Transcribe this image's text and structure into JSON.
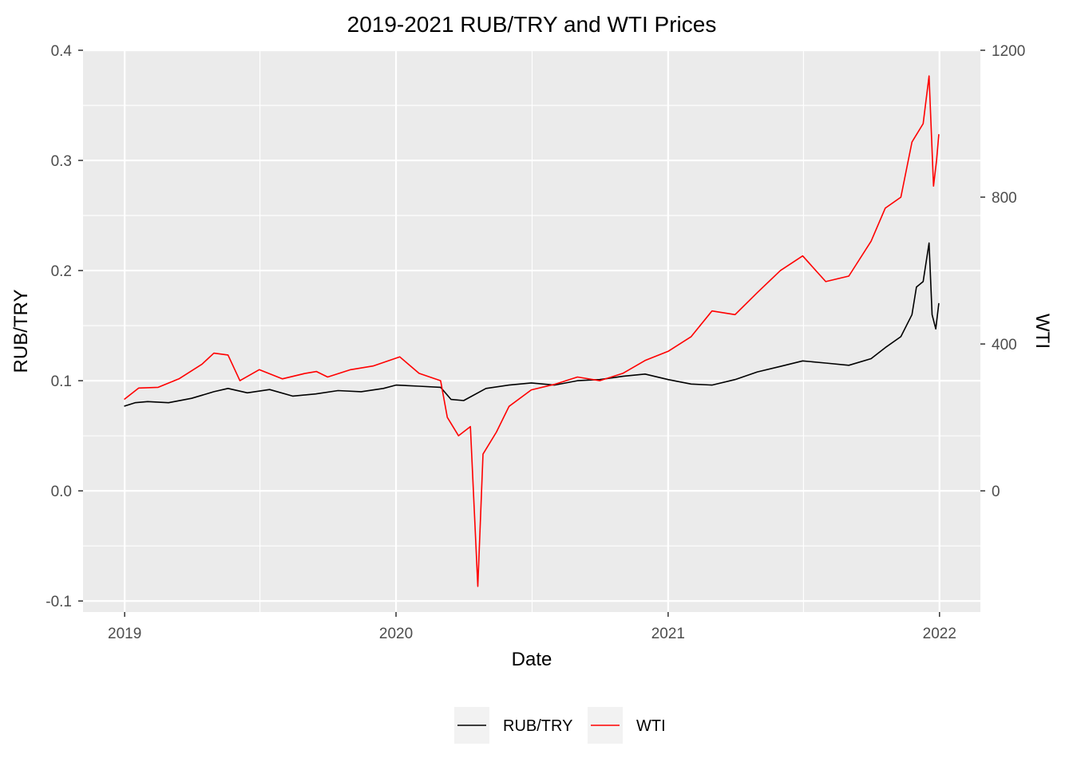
{
  "chart_data": {
    "type": "line",
    "title": "2019-2021 RUB/TRY and WTI Prices",
    "xlabel": "Date",
    "ylabel": "RUB/TRY",
    "y2label": "WTI",
    "xlim": [
      "2018-11-06",
      "2022-02-25"
    ],
    "ylim": [
      -0.11,
      0.4
    ],
    "y2lim": [
      -330,
      1200
    ],
    "x_ticks": [
      "2019",
      "2020",
      "2021",
      "2022"
    ],
    "y_ticks": [
      "-0.1",
      "0.0",
      "0.1",
      "0.2",
      "0.3",
      "0.4"
    ],
    "y2_ticks": [
      "0",
      "400",
      "800",
      "1200"
    ],
    "grid": true,
    "legend_position": "bottom",
    "colors": {
      "rub_try": "#000000",
      "wti": "#ff0000",
      "panel": "#ebebeb",
      "grid": "#ffffff"
    },
    "series": [
      {
        "name": "RUB/TRY",
        "axis": "left",
        "points": [
          [
            "2019-01-01",
            0.077
          ],
          [
            "2019-01-15",
            0.08
          ],
          [
            "2019-02-01",
            0.081
          ],
          [
            "2019-03-01",
            0.08
          ],
          [
            "2019-04-01",
            0.084
          ],
          [
            "2019-05-01",
            0.09
          ],
          [
            "2019-05-20",
            0.093
          ],
          [
            "2019-06-15",
            0.089
          ],
          [
            "2019-07-15",
            0.092
          ],
          [
            "2019-08-15",
            0.086
          ],
          [
            "2019-09-15",
            0.088
          ],
          [
            "2019-10-15",
            0.091
          ],
          [
            "2019-11-15",
            0.09
          ],
          [
            "2019-12-15",
            0.093
          ],
          [
            "2020-01-01",
            0.096
          ],
          [
            "2020-02-01",
            0.095
          ],
          [
            "2020-03-01",
            0.094
          ],
          [
            "2020-03-15",
            0.083
          ],
          [
            "2020-04-01",
            0.082
          ],
          [
            "2020-05-01",
            0.093
          ],
          [
            "2020-06-01",
            0.096
          ],
          [
            "2020-07-01",
            0.098
          ],
          [
            "2020-08-01",
            0.096
          ],
          [
            "2020-09-01",
            0.1
          ],
          [
            "2020-10-01",
            0.101
          ],
          [
            "2020-11-01",
            0.104
          ],
          [
            "2020-12-01",
            0.106
          ],
          [
            "2021-01-01",
            0.101
          ],
          [
            "2021-02-01",
            0.097
          ],
          [
            "2021-03-01",
            0.096
          ],
          [
            "2021-04-01",
            0.101
          ],
          [
            "2021-05-01",
            0.108
          ],
          [
            "2021-06-01",
            0.113
          ],
          [
            "2021-07-01",
            0.118
          ],
          [
            "2021-08-01",
            0.116
          ],
          [
            "2021-09-01",
            0.114
          ],
          [
            "2021-10-01",
            0.12
          ],
          [
            "2021-10-20",
            0.13
          ],
          [
            "2021-11-10",
            0.14
          ],
          [
            "2021-11-25",
            0.16
          ],
          [
            "2021-12-01",
            0.185
          ],
          [
            "2021-12-10",
            0.19
          ],
          [
            "2021-12-18",
            0.225
          ],
          [
            "2021-12-22",
            0.16
          ],
          [
            "2021-12-27",
            0.147
          ],
          [
            "2021-12-31",
            0.17
          ]
        ]
      },
      {
        "name": "WTI",
        "axis": "right",
        "points": [
          [
            "2019-01-01",
            250
          ],
          [
            "2019-01-20",
            280
          ],
          [
            "2019-02-15",
            282
          ],
          [
            "2019-03-15",
            305
          ],
          [
            "2019-04-15",
            345
          ],
          [
            "2019-05-01",
            375
          ],
          [
            "2019-05-20",
            370
          ],
          [
            "2019-06-05",
            300
          ],
          [
            "2019-07-01",
            330
          ],
          [
            "2019-08-01",
            305
          ],
          [
            "2019-09-01",
            320
          ],
          [
            "2019-09-16",
            325
          ],
          [
            "2019-10-01",
            310
          ],
          [
            "2019-11-01",
            330
          ],
          [
            "2019-12-01",
            340
          ],
          [
            "2020-01-06",
            365
          ],
          [
            "2020-02-01",
            320
          ],
          [
            "2020-03-01",
            300
          ],
          [
            "2020-03-10",
            200
          ],
          [
            "2020-03-25",
            150
          ],
          [
            "2020-04-10",
            175
          ],
          [
            "2020-04-20",
            -260
          ],
          [
            "2020-04-27",
            100
          ],
          [
            "2020-05-15",
            160
          ],
          [
            "2020-06-01",
            230
          ],
          [
            "2020-07-01",
            275
          ],
          [
            "2020-08-01",
            290
          ],
          [
            "2020-09-01",
            310
          ],
          [
            "2020-10-01",
            300
          ],
          [
            "2020-11-01",
            320
          ],
          [
            "2020-12-01",
            355
          ],
          [
            "2021-01-01",
            380
          ],
          [
            "2021-02-01",
            420
          ],
          [
            "2021-03-01",
            490
          ],
          [
            "2021-04-01",
            480
          ],
          [
            "2021-05-01",
            540
          ],
          [
            "2021-06-01",
            600
          ],
          [
            "2021-07-01",
            640
          ],
          [
            "2021-08-01",
            570
          ],
          [
            "2021-09-01",
            585
          ],
          [
            "2021-10-01",
            680
          ],
          [
            "2021-10-20",
            770
          ],
          [
            "2021-11-10",
            800
          ],
          [
            "2021-11-25",
            950
          ],
          [
            "2021-12-10",
            1000
          ],
          [
            "2021-12-18",
            1130
          ],
          [
            "2021-12-24",
            830
          ],
          [
            "2021-12-28",
            900
          ],
          [
            "2021-12-31",
            970
          ]
        ]
      }
    ]
  }
}
